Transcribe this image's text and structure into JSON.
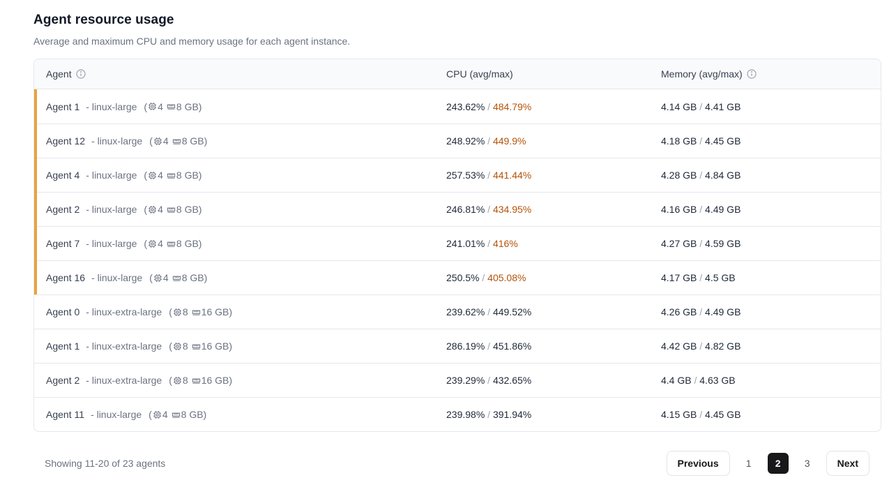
{
  "page": {
    "title": "Agent resource usage",
    "subtitle": "Average and maximum CPU and memory usage for each agent instance."
  },
  "table": {
    "columns": {
      "agent": "Agent",
      "cpu": "CPU (avg/max)",
      "memory": "Memory (avg/max)"
    },
    "value_separator": "/",
    "name_type_separator": "-",
    "rows": [
      {
        "name": "Agent 1",
        "type": "linux-large",
        "cpus": "4",
        "ram": "8 GB",
        "cpu_avg": "243.62%",
        "cpu_max": "484.79%",
        "mem_avg": "4.14 GB",
        "mem_max": "4.41 GB",
        "highlight": true
      },
      {
        "name": "Agent 12",
        "type": "linux-large",
        "cpus": "4",
        "ram": "8 GB",
        "cpu_avg": "248.92%",
        "cpu_max": "449.9%",
        "mem_avg": "4.18 GB",
        "mem_max": "4.45 GB",
        "highlight": true
      },
      {
        "name": "Agent 4",
        "type": "linux-large",
        "cpus": "4",
        "ram": "8 GB",
        "cpu_avg": "257.53%",
        "cpu_max": "441.44%",
        "mem_avg": "4.28 GB",
        "mem_max": "4.84 GB",
        "highlight": true
      },
      {
        "name": "Agent 2",
        "type": "linux-large",
        "cpus": "4",
        "ram": "8 GB",
        "cpu_avg": "246.81%",
        "cpu_max": "434.95%",
        "mem_avg": "4.16 GB",
        "mem_max": "4.49 GB",
        "highlight": true
      },
      {
        "name": "Agent 7",
        "type": "linux-large",
        "cpus": "4",
        "ram": "8 GB",
        "cpu_avg": "241.01%",
        "cpu_max": "416%",
        "mem_avg": "4.27 GB",
        "mem_max": "4.59 GB",
        "highlight": true
      },
      {
        "name": "Agent 16",
        "type": "linux-large",
        "cpus": "4",
        "ram": "8 GB",
        "cpu_avg": "250.5%",
        "cpu_max": "405.08%",
        "mem_avg": "4.17 GB",
        "mem_max": "4.5 GB",
        "highlight": true
      },
      {
        "name": "Agent 0",
        "type": "linux-extra-large",
        "cpus": "8",
        "ram": "16 GB",
        "cpu_avg": "239.62%",
        "cpu_max": "449.52%",
        "mem_avg": "4.26 GB",
        "mem_max": "4.49 GB",
        "highlight": false
      },
      {
        "name": "Agent 1",
        "type": "linux-extra-large",
        "cpus": "8",
        "ram": "16 GB",
        "cpu_avg": "286.19%",
        "cpu_max": "451.86%",
        "mem_avg": "4.42 GB",
        "mem_max": "4.82 GB",
        "highlight": false
      },
      {
        "name": "Agent 2",
        "type": "linux-extra-large",
        "cpus": "8",
        "ram": "16 GB",
        "cpu_avg": "239.29%",
        "cpu_max": "432.65%",
        "mem_avg": "4.4 GB",
        "mem_max": "4.63 GB",
        "highlight": false
      },
      {
        "name": "Agent 11",
        "type": "linux-large",
        "cpus": "4",
        "ram": "8 GB",
        "cpu_avg": "239.98%",
        "cpu_max": "391.94%",
        "mem_avg": "4.15 GB",
        "mem_max": "4.45 GB",
        "highlight": false
      }
    ]
  },
  "footer": {
    "summary": "Showing 11-20 of 23 agents",
    "pagination": {
      "previous_label": "Previous",
      "pages": [
        "1",
        "2",
        "3"
      ],
      "current_page": "2",
      "next_label": "Next"
    }
  },
  "colors": {
    "accent_bar": "#E9A33B",
    "cpu_max_highlight": "#B45309"
  }
}
